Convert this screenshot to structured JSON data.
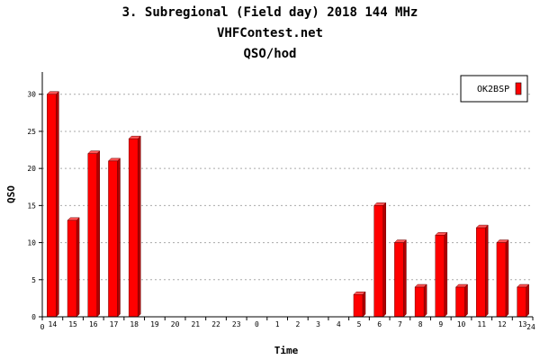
{
  "chart_data": {
    "type": "bar",
    "title_lines": [
      "3. Subregional (Field day) 2018 144 MHz",
      "VHFContest.net",
      "QSO/hod"
    ],
    "xlabel": "Time",
    "ylabel": "QSO",
    "categories": [
      "14",
      "15",
      "16",
      "17",
      "18",
      "19",
      "20",
      "21",
      "22",
      "23",
      "0",
      "1",
      "2",
      "3",
      "4",
      "5",
      "6",
      "7",
      "8",
      "9",
      "10",
      "11",
      "12",
      "13"
    ],
    "x_axis_ends": [
      "0",
      "24"
    ],
    "series": [
      {
        "name": "OK2BSP",
        "color": "#ff0000",
        "values": [
          30,
          13,
          22,
          21,
          24,
          0,
          0,
          0,
          0,
          0,
          0,
          0,
          0,
          0,
          0,
          3,
          15,
          10,
          4,
          11,
          4,
          12,
          10,
          4
        ]
      }
    ],
    "ylim": [
      0,
      33
    ],
    "yticks": [
      0,
      5,
      10,
      15,
      20,
      25,
      30
    ],
    "grid": "horizontal-dotted",
    "legend_position": "top-right"
  }
}
